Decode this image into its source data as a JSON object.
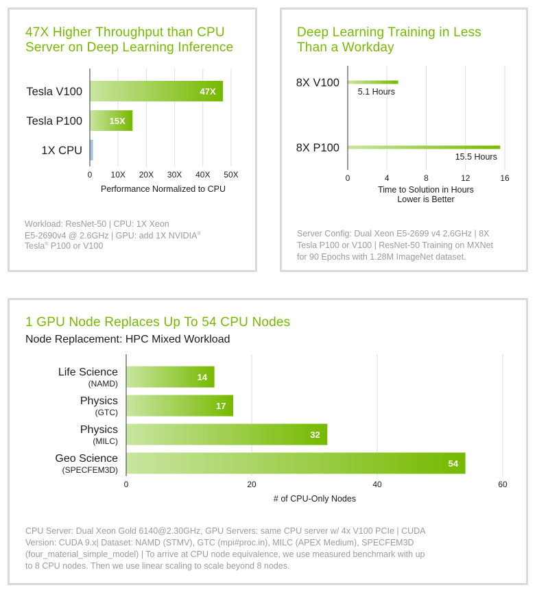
{
  "colors": {
    "accent": "#76b900",
    "bar_light": "#c4e39a",
    "bar_dark": "#76b900",
    "cpu_bar": "#a9c4e6",
    "grid": "#dddddd",
    "note": "#9b9b9b"
  },
  "panel1": {
    "title_line1": "47X Higher Throughput than CPU",
    "title_line2": "Server on Deep Learning Inference",
    "note_line1": "Workload: ResNet-50  |  CPU: 1X Xeon",
    "note_line2": "E5-2690v4 @ 2.6GHz  |  GPU: add 1X NVIDIA",
    "note_line2_mark": "®",
    "note_line3": "Tesla",
    "note_line3_mark": "®",
    "note_line3_rest": " P100 or V100"
  },
  "panel2": {
    "title_line1": "Deep Learning Training in Less",
    "title_line2": "Than a Workday",
    "note_line1": "Server Config: Dual Xeon E5-2699 v4 2.6GHz | 8X",
    "note_line2": "Tesla P100 or V100 | ResNet-50 Training on MXNet",
    "note_line3": "for 90 Epochs with 1.28M ImageNet dataset."
  },
  "panel3": {
    "title": "1 GPU Node Replaces Up To 54 CPU Nodes",
    "subtitle": "Node Replacement: HPC Mixed Workload",
    "note_line1": "CPU Server: Dual Xeon Gold 6140@2.30GHz, GPU Servers: same CPU server w/ 4x V100  PCIe | CUDA",
    "note_line2": "Version: CUDA 9.x| Dataset: NAMD (STMV), GTC (mpi#proc.in), MILC (APEX Medium), SPECFEM3D",
    "note_line3": "(four_material_simple_model) | To arrive at CPU node equivalence, we use measured benchmark with up",
    "note_line4": "to 8 CPU nodes. Then we use linear scaling to scale beyond 8 nodes."
  },
  "chart_data": [
    {
      "type": "bar",
      "orientation": "horizontal",
      "categories": [
        "Tesla V100",
        "Tesla P100",
        "1X CPU"
      ],
      "values": [
        47,
        15,
        1
      ],
      "data_labels": [
        "47X",
        "15X",
        ""
      ],
      "xlabel": "Performance Normalized to CPU",
      "xlim": [
        0,
        50
      ],
      "xticks": [
        0,
        10,
        20,
        30,
        40,
        50
      ],
      "xtick_labels": [
        "0",
        "10X",
        "20X",
        "30X",
        "40X",
        "50X"
      ],
      "grid": true
    },
    {
      "type": "bar",
      "orientation": "horizontal",
      "categories": [
        "8X V100",
        "8X P100"
      ],
      "values": [
        5.1,
        15.5
      ],
      "data_labels": [
        "5.1 Hours",
        "15.5 Hours"
      ],
      "xlabel_line1": "Time to Solution in Hours",
      "xlabel_line2": "Lower is Better",
      "xlim": [
        0,
        16
      ],
      "xticks": [
        0,
        4,
        8,
        12,
        16
      ],
      "xtick_labels": [
        "0",
        "4",
        "8",
        "12",
        "16"
      ],
      "grid": true
    },
    {
      "type": "bar",
      "orientation": "horizontal",
      "categories": [
        "Life Science",
        "Physics",
        "Physics",
        "Geo Science"
      ],
      "category_sublabels": [
        "(NAMD)",
        "(GTC)",
        "(MILC)",
        "(SPECFEM3D)"
      ],
      "values": [
        14,
        17,
        32,
        54
      ],
      "data_labels": [
        "14",
        "17",
        "32",
        "54"
      ],
      "xlabel": "# of CPU-Only Nodes",
      "xlim": [
        0,
        60
      ],
      "xticks": [
        0,
        20,
        40,
        60
      ],
      "xtick_labels": [
        "0",
        "20",
        "40",
        "60"
      ],
      "grid": true
    }
  ]
}
